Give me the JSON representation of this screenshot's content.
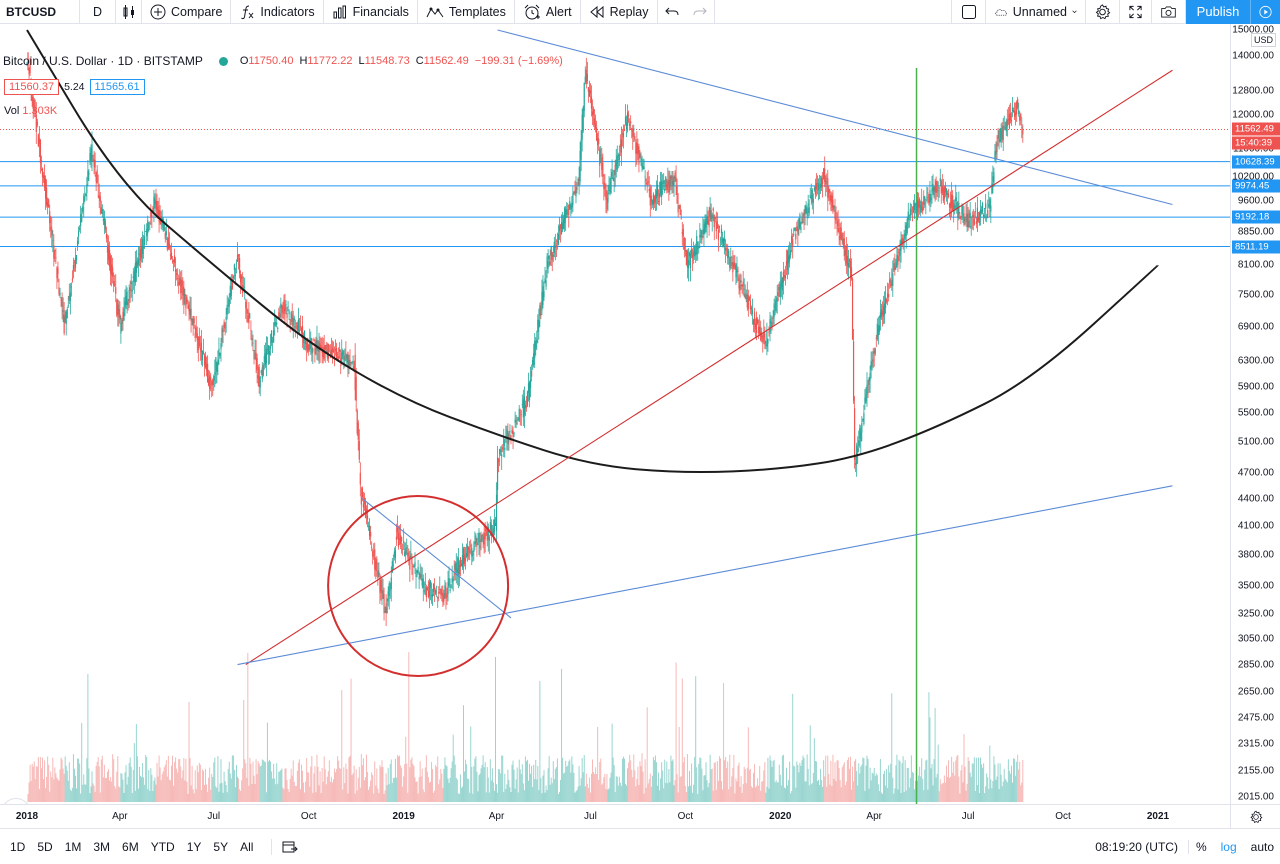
{
  "toolbar": {
    "symbol": "BTCUSD",
    "interval": "D",
    "compare": "Compare",
    "indicators": "Indicators",
    "financials": "Financials",
    "templates": "Templates",
    "alert": "Alert",
    "replay": "Replay",
    "layout_name": "Unnamed",
    "publish": "Publish"
  },
  "legend": {
    "title": "Bitcoin / U.S. Dollar · 1D · BITSTAMP",
    "open_key": "O",
    "open": "11750.40",
    "high_key": "H",
    "high": "11772.22",
    "low_key": "L",
    "low": "11548.73",
    "close_key": "C",
    "close": "11562.49",
    "change": "−199.31 (−1.69%)",
    "bid": "11560.37",
    "spread": "5.24",
    "ask": "11565.61",
    "vol_label": "Vol",
    "vol_value": "1.303K"
  },
  "price_scale": {
    "currency": "USD",
    "ticks": [
      "15000.00",
      "14000.00",
      "12800.00",
      "12000.00",
      "11000.00",
      "10200.00",
      "9600.00",
      "8850.00",
      "8100.00",
      "7500.00",
      "6900.00",
      "6300.00",
      "5900.00",
      "5500.00",
      "5100.00",
      "4700.00",
      "4400.00",
      "4100.00",
      "3800.00",
      "3500.00",
      "3250.00",
      "3050.00",
      "2850.00",
      "2650.00",
      "2475.00",
      "2315.00",
      "2155.00",
      "2015.00"
    ],
    "labels": [
      {
        "text": "11562.49",
        "color": "#ef5350"
      },
      {
        "text": "15:40:39",
        "color": "#ef5350"
      },
      {
        "text": "10628.39",
        "color": "#2196f3"
      },
      {
        "text": "9974.45",
        "color": "#2196f3"
      },
      {
        "text": "9192.18",
        "color": "#2196f3"
      },
      {
        "text": "8511.19",
        "color": "#2196f3"
      }
    ]
  },
  "time_axis": {
    "ticks": [
      {
        "label": "2018",
        "bold": true
      },
      {
        "label": "Apr",
        "bold": false
      },
      {
        "label": "Jul",
        "bold": false
      },
      {
        "label": "Oct",
        "bold": false
      },
      {
        "label": "2019",
        "bold": true
      },
      {
        "label": "Apr",
        "bold": false
      },
      {
        "label": "Jul",
        "bold": false
      },
      {
        "label": "Oct",
        "bold": false
      },
      {
        "label": "2020",
        "bold": true
      },
      {
        "label": "Apr",
        "bold": false
      },
      {
        "label": "Jul",
        "bold": false
      },
      {
        "label": "Oct",
        "bold": false
      },
      {
        "label": "2021",
        "bold": true
      }
    ]
  },
  "bottom_bar": {
    "ranges": [
      "1D",
      "5D",
      "1M",
      "3M",
      "6M",
      "YTD",
      "1Y",
      "5Y",
      "All"
    ],
    "clock": "08:19:20 (UTC)",
    "percent": "%",
    "log": "log",
    "auto": "auto"
  },
  "colors": {
    "up": "#26a69a",
    "down": "#ef5350",
    "horizontal_levels": "#2196f3",
    "trendline_red": "#d32f2f",
    "trendline_blue": "#5b8bd6",
    "moving_average": "#1c1c1c",
    "vertical_marker": "#4caf50",
    "circle": "#d32f2f",
    "accent": "#2196f3"
  },
  "chart_data": {
    "type": "candlestick",
    "symbol": "BTCUSD",
    "exchange": "BITSTAMP",
    "interval": "1D",
    "scale": "log",
    "ylim": [
      2015,
      15000
    ],
    "x_range": [
      "2018-01",
      "2021-01"
    ],
    "price_path": [
      {
        "date": "2018-01-01",
        "price": 14000
      },
      {
        "date": "2018-02-06",
        "price": 6900
      },
      {
        "date": "2018-03-05",
        "price": 11000
      },
      {
        "date": "2018-04-01",
        "price": 6900
      },
      {
        "date": "2018-05-05",
        "price": 9600
      },
      {
        "date": "2018-06-29",
        "price": 5900
      },
      {
        "date": "2018-07-24",
        "price": 8300
      },
      {
        "date": "2018-08-14",
        "price": 6000
      },
      {
        "date": "2018-09-05",
        "price": 7300
      },
      {
        "date": "2018-10-01",
        "price": 6600
      },
      {
        "date": "2018-11-14",
        "price": 6300
      },
      {
        "date": "2018-11-20",
        "price": 4500
      },
      {
        "date": "2018-12-15",
        "price": 3250
      },
      {
        "date": "2018-12-25",
        "price": 4000
      },
      {
        "date": "2019-01-20",
        "price": 3500
      },
      {
        "date": "2019-02-08",
        "price": 3400
      },
      {
        "date": "2019-03-01",
        "price": 3800
      },
      {
        "date": "2019-03-31",
        "price": 4100
      },
      {
        "date": "2019-04-02",
        "price": 4900
      },
      {
        "date": "2019-05-01",
        "price": 5700
      },
      {
        "date": "2019-05-20",
        "price": 8100
      },
      {
        "date": "2019-06-20",
        "price": 10200
      },
      {
        "date": "2019-06-26",
        "price": 13500
      },
      {
        "date": "2019-07-17",
        "price": 9600
      },
      {
        "date": "2019-08-06",
        "price": 12000
      },
      {
        "date": "2019-08-29",
        "price": 9600
      },
      {
        "date": "2019-09-20",
        "price": 10200
      },
      {
        "date": "2019-10-03",
        "price": 8100
      },
      {
        "date": "2019-10-26",
        "price": 9300
      },
      {
        "date": "2019-12-17",
        "price": 6600
      },
      {
        "date": "2020-01-15",
        "price": 8800
      },
      {
        "date": "2020-02-12",
        "price": 10300
      },
      {
        "date": "2020-03-10",
        "price": 7900
      },
      {
        "date": "2020-03-13",
        "price": 4800
      },
      {
        "date": "2020-04-05",
        "price": 6900
      },
      {
        "date": "2020-05-05",
        "price": 9200
      },
      {
        "date": "2020-06-02",
        "price": 10000
      },
      {
        "date": "2020-07-01",
        "price": 9100
      },
      {
        "date": "2020-07-22",
        "price": 9400
      },
      {
        "date": "2020-07-28",
        "price": 11100
      },
      {
        "date": "2020-08-17",
        "price": 12300
      },
      {
        "date": "2020-08-23",
        "price": 11562.49
      }
    ],
    "horizontal_levels": [
      10628.39,
      9974.45,
      9192.18,
      8511.19
    ],
    "last_price": 11562.49,
    "moving_average": [
      {
        "date": "2018-01-01",
        "price": 15000
      },
      {
        "date": "2018-04-01",
        "price": 10000
      },
      {
        "date": "2018-07-01",
        "price": 8100
      },
      {
        "date": "2018-10-01",
        "price": 6600
      },
      {
        "date": "2019-01-01",
        "price": 5700
      },
      {
        "date": "2019-04-01",
        "price": 5200
      },
      {
        "date": "2019-07-01",
        "price": 4800
      },
      {
        "date": "2019-10-01",
        "price": 4700
      },
      {
        "date": "2020-01-01",
        "price": 4750
      },
      {
        "date": "2020-03-15",
        "price": 4900
      },
      {
        "date": "2020-06-01",
        "price": 5300
      },
      {
        "date": "2020-09-01",
        "price": 6000
      },
      {
        "date": "2021-01-01",
        "price": 8100
      }
    ],
    "trendlines": [
      {
        "color": "red",
        "from": {
          "date": "2018-08-01",
          "price": 2850
        },
        "to": {
          "date": "2021-01-15",
          "price": 13500
        }
      },
      {
        "color": "blue",
        "from": {
          "date": "2018-07-24",
          "price": 2850
        },
        "to": {
          "date": "2021-01-15",
          "price": 4550
        }
      },
      {
        "color": "blue",
        "from": {
          "date": "2019-04-02",
          "price": 15000
        },
        "to": {
          "date": "2021-01-15",
          "price": 9500
        }
      },
      {
        "color": "blue",
        "from": {
          "date": "2018-11-22",
          "price": 4400
        },
        "to": {
          "date": "2019-04-15",
          "price": 3220
        }
      }
    ],
    "vertical_marker_date": "2020-05-12",
    "highlight_circle_around": "2019-01-15"
  }
}
